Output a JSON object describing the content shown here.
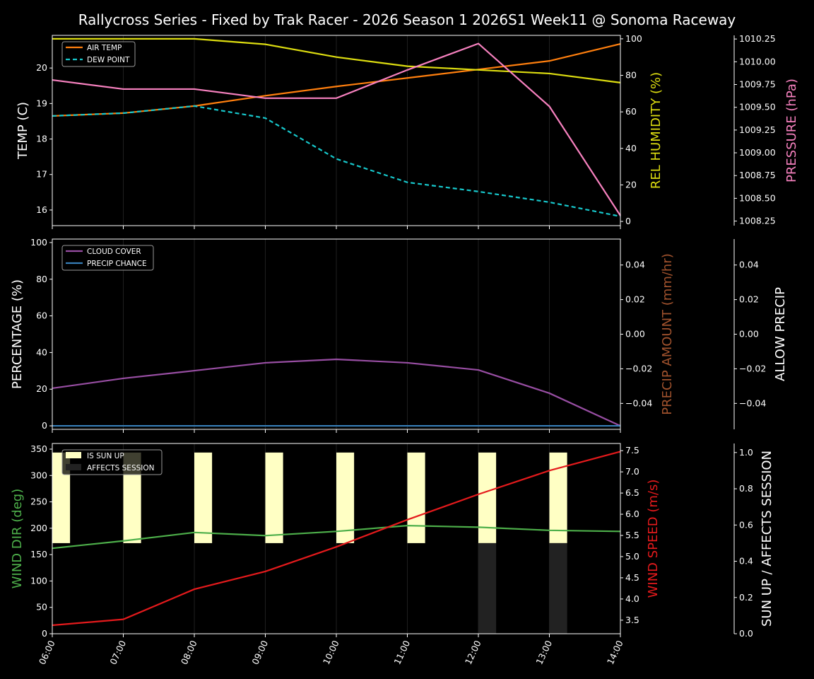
{
  "title": "Rallycross Series - Fixed by Trak Racer - 2026 Season 1 2026S1 Week11 @ Sonoma Raceway",
  "colors": {
    "background": "#000000",
    "air_temp": "#ff7f0e",
    "dew_point": "#17c8cc",
    "humidity": "#dcdc10",
    "pressure": "#f781bf",
    "cloud_cover": "#984ea3",
    "precip_chance": "#377eb8",
    "precip_amount_label": "#a0522d",
    "wind_dir": "#4daf4a",
    "wind_speed": "#e41a1c",
    "sun_up": "#ffffc4",
    "affects_session": "#222222"
  },
  "chart_data": [
    {
      "type": "line",
      "x": [
        "06:00",
        "07:00",
        "08:00",
        "09:00",
        "10:00",
        "11:00",
        "12:00",
        "13:00",
        "14:00"
      ],
      "legend_placement": "top-left",
      "grid": "vertical",
      "axes": [
        {
          "label": "TEMP (C)",
          "side": "left",
          "ylim": [
            15.56,
            20.92
          ],
          "ticks": [
            16,
            17,
            18,
            19,
            20
          ],
          "tick_labels": [
            "16",
            "17",
            "18",
            "19",
            "20"
          ]
        },
        {
          "label": "REL HUMIDITY (%)",
          "side": "right",
          "ylim": [
            -2.3,
            101.9
          ],
          "ticks": [
            0,
            20,
            40,
            60,
            80,
            100
          ],
          "tick_labels": [
            "0",
            "20",
            "40",
            "60",
            "80",
            "100"
          ]
        },
        {
          "label": "PRESSURE (hPa)",
          "side": "right-outer",
          "ylim": [
            1008.2,
            1010.29
          ],
          "ticks": [
            1008.25,
            1008.5,
            1008.75,
            1009,
            1009.25,
            1009.5,
            1009.75,
            1010,
            1010.25
          ],
          "tick_labels": [
            "1008.25",
            "1008.50",
            "1008.75",
            "1009.00",
            "1009.25",
            "1009.50",
            "1009.75",
            "1010.00",
            "1010.25"
          ]
        }
      ],
      "series": [
        {
          "name": "AIR TEMP",
          "axis": 0,
          "color": "air_temp",
          "style": "solid",
          "values": [
            18.65,
            18.73,
            18.93,
            19.22,
            19.48,
            19.72,
            19.96,
            20.2,
            20.68
          ]
        },
        {
          "name": "DEW POINT",
          "axis": 0,
          "color": "dew_point",
          "style": "dashed",
          "values": [
            18.65,
            18.73,
            18.93,
            18.59,
            17.44,
            16.78,
            16.52,
            16.22,
            15.82
          ]
        },
        {
          "axis": 1,
          "color": "humidity",
          "style": "solid",
          "values": [
            100,
            100,
            100,
            97,
            90,
            85,
            83,
            81,
            76
          ]
        },
        {
          "axis": 2,
          "color": "pressure",
          "style": "solid",
          "values": [
            1009.8,
            1009.7,
            1009.7,
            1009.6,
            1009.6,
            1009.91,
            1010.2,
            1009.51,
            1008.31
          ]
        }
      ]
    },
    {
      "type": "line",
      "x": [
        "06:00",
        "07:00",
        "08:00",
        "09:00",
        "10:00",
        "11:00",
        "12:00",
        "13:00",
        "14:00"
      ],
      "legend_placement": "top-left",
      "grid": "vertical",
      "axes": [
        {
          "label": "PERCENTAGE (%)",
          "side": "left",
          "ylim": [
            -1.9,
            101.9
          ],
          "ticks": [
            0,
            20,
            40,
            60,
            80,
            100
          ],
          "tick_labels": [
            "0",
            "20",
            "40",
            "60",
            "80",
            "100"
          ]
        },
        {
          "label": "PRECIP AMOUNT (mm/hr)",
          "side": "right",
          "ylim": [
            -0.055,
            0.055
          ],
          "ticks": [
            -0.04,
            -0.02,
            0,
            0.02,
            0.04
          ],
          "tick_labels": [
            "−0.04",
            "−0.02",
            "0.00",
            "0.02",
            "0.04"
          ]
        },
        {
          "label": "ALLOW PRECIP",
          "side": "right-outer",
          "ylim": [
            -0.055,
            0.055
          ],
          "ticks": [
            -0.04,
            -0.02,
            0,
            0.02,
            0.04
          ],
          "tick_labels": [
            "−0.04",
            "−0.02",
            "0.00",
            "0.02",
            "0.04"
          ]
        }
      ],
      "series": [
        {
          "name": "CLOUD COVER",
          "axis": 0,
          "color": "cloud_cover",
          "style": "solid",
          "values": [
            20.5,
            25.9,
            30.1,
            34.4,
            36.3,
            34.4,
            30.5,
            17.8,
            0
          ]
        },
        {
          "name": "PRECIP CHANCE",
          "axis": 0,
          "color": "precip_chance",
          "style": "solid",
          "values": [
            0,
            0,
            0,
            0,
            0,
            0,
            0,
            0,
            0
          ]
        }
      ]
    },
    {
      "type": "line",
      "x": [
        "06:00",
        "07:00",
        "08:00",
        "09:00",
        "10:00",
        "11:00",
        "12:00",
        "13:00",
        "14:00"
      ],
      "legend_placement": "top-left",
      "grid": "vertical",
      "axes": [
        {
          "label": "WIND DIR (deg)",
          "side": "left",
          "ylim": [
            0,
            360.7
          ],
          "ticks": [
            0,
            50,
            100,
            150,
            200,
            250,
            300,
            350
          ],
          "tick_labels": [
            "0",
            "50",
            "100",
            "150",
            "200",
            "250",
            "300",
            "350"
          ]
        },
        {
          "label": "WIND SPEED (m/s)",
          "side": "right",
          "ylim": [
            3.18,
            7.67
          ],
          "ticks": [
            3.5,
            4,
            4.5,
            5,
            5.5,
            6,
            6.5,
            7,
            7.5
          ],
          "tick_labels": [
            "3.5",
            "4.0",
            "4.5",
            "5.0",
            "5.5",
            "6.0",
            "6.5",
            "7.0",
            "7.5"
          ]
        },
        {
          "label": "SUN UP / AFFECTS SESSION",
          "side": "right-outer",
          "ylim": [
            0,
            1.05
          ],
          "ticks": [
            0,
            0.2,
            0.4,
            0.6,
            0.8,
            1.0
          ],
          "tick_labels": [
            "0.0",
            "0.2",
            "0.4",
            "0.6",
            "0.8",
            "1.0"
          ]
        }
      ],
      "bars": [
        {
          "name": "IS SUN UP",
          "axis": 2,
          "color": "sun_up",
          "values": [
            1,
            1,
            1,
            1,
            1,
            1,
            1,
            1,
            0
          ]
        },
        {
          "name": "AFFECTS SESSION",
          "axis": 2,
          "color": "affects_session",
          "values": [
            0,
            0,
            0,
            0,
            0,
            0,
            1,
            1,
            0
          ]
        }
      ],
      "series": [
        {
          "axis": 0,
          "color": "wind_dir",
          "style": "solid",
          "values": [
            162,
            176,
            192,
            186,
            194,
            205,
            202,
            196,
            194
          ]
        },
        {
          "axis": 1,
          "color": "wind_speed",
          "style": "solid",
          "values": [
            3.38,
            3.52,
            4.23,
            4.65,
            5.23,
            5.87,
            6.47,
            7.03,
            7.48
          ]
        }
      ]
    }
  ]
}
